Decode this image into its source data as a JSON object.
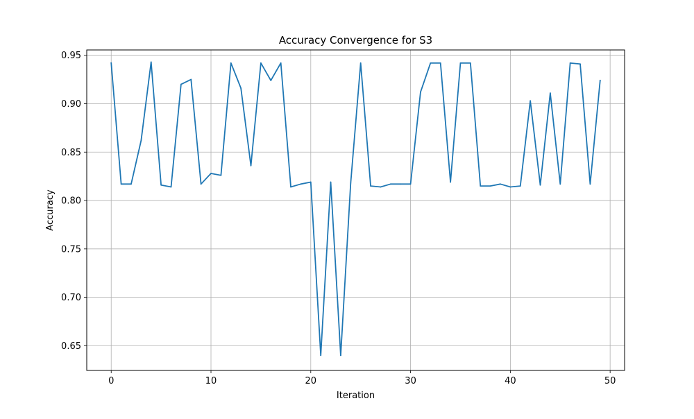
{
  "chart_data": {
    "type": "line",
    "title": "Accuracy Convergence for S3",
    "xlabel": "Iteration",
    "ylabel": "Accuracy",
    "xlim": [
      -2.45,
      51.45
    ],
    "ylim": [
      0.6245,
      0.9555
    ],
    "xticks": [
      0,
      10,
      20,
      30,
      40,
      50
    ],
    "yticks": [
      0.65,
      0.7,
      0.75,
      0.8,
      0.85,
      0.9,
      0.95
    ],
    "xtick_labels": [
      "0",
      "10",
      "20",
      "30",
      "40",
      "50"
    ],
    "ytick_labels": [
      "0.65",
      "0.70",
      "0.75",
      "0.80",
      "0.85",
      "0.90",
      "0.95"
    ],
    "grid": true,
    "line_color": "#1f77b4",
    "grid_color": "#b0b0b0",
    "x": [
      0,
      1,
      2,
      3,
      4,
      5,
      6,
      7,
      8,
      9,
      10,
      11,
      12,
      13,
      14,
      15,
      16,
      17,
      18,
      19,
      20,
      21,
      22,
      23,
      24,
      25,
      26,
      27,
      28,
      29,
      30,
      31,
      32,
      33,
      34,
      35,
      36,
      37,
      38,
      39,
      40,
      41,
      42,
      43,
      44,
      45,
      46,
      47,
      48,
      49
    ],
    "series": [
      {
        "values": [
          0.942,
          0.817,
          0.817,
          0.862,
          0.943,
          0.816,
          0.814,
          0.92,
          0.925,
          0.817,
          0.828,
          0.826,
          0.942,
          0.916,
          0.836,
          0.942,
          0.924,
          0.942,
          0.814,
          0.817,
          0.819,
          0.64,
          0.819,
          0.64,
          0.818,
          0.942,
          0.815,
          0.814,
          0.817,
          0.817,
          0.817,
          0.912,
          0.942,
          0.942,
          0.819,
          0.942,
          0.942,
          0.815,
          0.815,
          0.817,
          0.814,
          0.815,
          0.903,
          0.816,
          0.911,
          0.817,
          0.942,
          0.941,
          0.817,
          0.924
        ]
      }
    ]
  }
}
